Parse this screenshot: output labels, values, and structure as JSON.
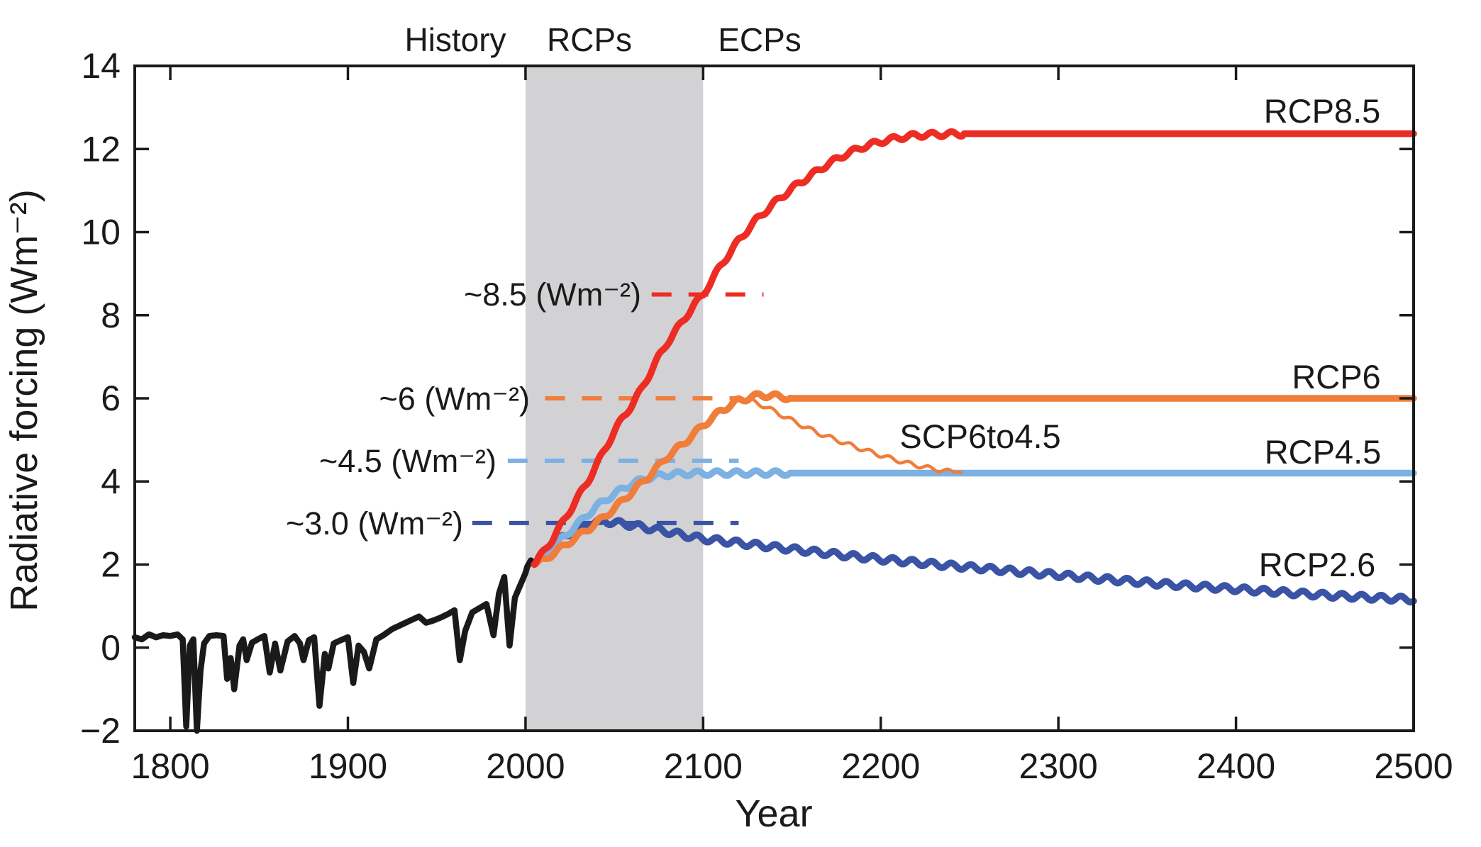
{
  "page": {
    "background": "#ffffff"
  },
  "chart_data": {
    "type": "line",
    "title": "",
    "xlabel": "Year",
    "ylabel": "Radiative forcing (Wm⁻²)",
    "xlim": [
      1780,
      2500
    ],
    "ylim": [
      -2,
      14
    ],
    "xticks": [
      1800,
      1900,
      2000,
      2100,
      2200,
      2300,
      2400,
      2500
    ],
    "yticks": [
      -2,
      0,
      2,
      4,
      6,
      8,
      10,
      12,
      14
    ],
    "grid": false,
    "legend_position": "inline-labels",
    "period_labels": {
      "history": "History",
      "rcps": "RCPs",
      "ecps": "ECPs"
    },
    "shaded_band": {
      "year_from": 2000,
      "year_to": 2100,
      "color": "#d2d2d5"
    },
    "dashed_lines": [
      {
        "label": "~8.5 (Wm⁻²)",
        "value": 8.5,
        "color": "#ed2d24",
        "year_from": 2071,
        "year_to": 2134
      },
      {
        "label": "~6 (Wm⁻²)",
        "value": 6.0,
        "color": "#f07d3a",
        "year_from": 2011,
        "year_to": 2120
      },
      {
        "label": "~4.5 (Wm⁻²)",
        "value": 4.5,
        "color": "#7cb1e2",
        "year_from": 1990,
        "year_to": 2120
      },
      {
        "label": "~3.0 (Wm⁻²)",
        "value": 3.0,
        "color": "#3a53a4",
        "year_from": 1970,
        "year_to": 2120
      }
    ],
    "series": [
      {
        "name": "History",
        "label": "History",
        "color": "#1a1a1a",
        "width": 8.5,
        "points": [
          [
            1780,
            0.25
          ],
          [
            1784,
            0.2
          ],
          [
            1788,
            0.32
          ],
          [
            1792,
            0.25
          ],
          [
            1796,
            0.3
          ],
          [
            1800,
            0.28
          ],
          [
            1804,
            0.32
          ],
          [
            1807,
            0.2
          ],
          [
            1809,
            -1.9
          ],
          [
            1811,
            0.05
          ],
          [
            1813,
            0.2
          ],
          [
            1815,
            -2.0
          ],
          [
            1817,
            -0.55
          ],
          [
            1819,
            0.1
          ],
          [
            1822,
            0.28
          ],
          [
            1826,
            0.3
          ],
          [
            1830,
            0.28
          ],
          [
            1832,
            -0.75
          ],
          [
            1834,
            -0.25
          ],
          [
            1836,
            -1.0
          ],
          [
            1839,
            0.05
          ],
          [
            1841,
            0.2
          ],
          [
            1843,
            -0.3
          ],
          [
            1846,
            0.12
          ],
          [
            1850,
            0.22
          ],
          [
            1853,
            0.28
          ],
          [
            1856,
            -0.6
          ],
          [
            1859,
            0.1
          ],
          [
            1862,
            -0.55
          ],
          [
            1866,
            0.15
          ],
          [
            1870,
            0.28
          ],
          [
            1873,
            0.1
          ],
          [
            1875,
            -0.3
          ],
          [
            1878,
            0.18
          ],
          [
            1881,
            0.25
          ],
          [
            1884,
            -1.4
          ],
          [
            1887,
            -0.15
          ],
          [
            1889,
            -0.5
          ],
          [
            1892,
            0.1
          ],
          [
            1896,
            0.18
          ],
          [
            1900,
            0.25
          ],
          [
            1903,
            -0.85
          ],
          [
            1906,
            0.05
          ],
          [
            1909,
            -0.1
          ],
          [
            1912,
            -0.5
          ],
          [
            1916,
            0.2
          ],
          [
            1920,
            0.3
          ],
          [
            1925,
            0.45
          ],
          [
            1930,
            0.55
          ],
          [
            1935,
            0.65
          ],
          [
            1940,
            0.75
          ],
          [
            1944,
            0.6
          ],
          [
            1948,
            0.65
          ],
          [
            1952,
            0.72
          ],
          [
            1956,
            0.8
          ],
          [
            1960,
            0.9
          ],
          [
            1963,
            -0.3
          ],
          [
            1966,
            0.4
          ],
          [
            1970,
            0.85
          ],
          [
            1974,
            0.95
          ],
          [
            1978,
            1.05
          ],
          [
            1982,
            0.3
          ],
          [
            1985,
            1.3
          ],
          [
            1988,
            1.7
          ],
          [
            1991,
            0.05
          ],
          [
            1994,
            1.2
          ],
          [
            1997,
            1.5
          ],
          [
            2000,
            1.8
          ],
          [
            2001,
            1.95
          ],
          [
            2003,
            2.1
          ],
          [
            2005,
            2.0
          ]
        ]
      },
      {
        "name": "RCP2.6",
        "label": "RCP2.6",
        "color": "#3a53a4",
        "width": 9.5,
        "wiggle": {
          "amp": 0.07,
          "period": 11,
          "from": 2006,
          "until": 2500
        },
        "points": [
          [
            2005,
            2.0
          ],
          [
            2010,
            2.25
          ],
          [
            2015,
            2.45
          ],
          [
            2020,
            2.62
          ],
          [
            2025,
            2.77
          ],
          [
            2030,
            2.88
          ],
          [
            2035,
            2.96
          ],
          [
            2040,
            3.02
          ],
          [
            2045,
            3.04
          ],
          [
            2050,
            3.01
          ],
          [
            2060,
            2.95
          ],
          [
            2070,
            2.87
          ],
          [
            2080,
            2.79
          ],
          [
            2090,
            2.7
          ],
          [
            2100,
            2.62
          ],
          [
            2120,
            2.52
          ],
          [
            2140,
            2.42
          ],
          [
            2160,
            2.32
          ],
          [
            2180,
            2.22
          ],
          [
            2200,
            2.13
          ],
          [
            2220,
            2.05
          ],
          [
            2240,
            1.97
          ],
          [
            2260,
            1.9
          ],
          [
            2280,
            1.82
          ],
          [
            2300,
            1.75
          ],
          [
            2320,
            1.67
          ],
          [
            2340,
            1.6
          ],
          [
            2360,
            1.53
          ],
          [
            2380,
            1.47
          ],
          [
            2400,
            1.41
          ],
          [
            2420,
            1.35
          ],
          [
            2440,
            1.29
          ],
          [
            2460,
            1.24
          ],
          [
            2480,
            1.2
          ],
          [
            2500,
            1.16
          ]
        ]
      },
      {
        "name": "RCP4.5",
        "label": "RCP4.5",
        "color": "#7cb1e2",
        "width": 9.5,
        "wiggle": {
          "amp": 0.06,
          "period": 11,
          "from": 2006,
          "until": 2148
        },
        "points": [
          [
            2005,
            2.0
          ],
          [
            2010,
            2.25
          ],
          [
            2020,
            2.6
          ],
          [
            2030,
            3.0
          ],
          [
            2040,
            3.4
          ],
          [
            2050,
            3.7
          ],
          [
            2060,
            3.95
          ],
          [
            2070,
            4.1
          ],
          [
            2080,
            4.17
          ],
          [
            2090,
            4.19
          ],
          [
            2100,
            4.2
          ],
          [
            2148,
            4.2
          ],
          [
            2500,
            4.2
          ]
        ]
      },
      {
        "name": "RCP6",
        "label": "RCP6",
        "color": "#f07d3a",
        "width": 9.5,
        "wiggle": {
          "amp": 0.06,
          "period": 11,
          "from": 2006,
          "until": 2148
        },
        "points": [
          [
            2005,
            2.0
          ],
          [
            2010,
            2.1
          ],
          [
            2020,
            2.4
          ],
          [
            2030,
            2.7
          ],
          [
            2040,
            3.0
          ],
          [
            2050,
            3.35
          ],
          [
            2060,
            3.75
          ],
          [
            2070,
            4.15
          ],
          [
            2080,
            4.6
          ],
          [
            2090,
            4.95
          ],
          [
            2100,
            5.35
          ],
          [
            2110,
            5.7
          ],
          [
            2120,
            5.95
          ],
          [
            2132,
            6.08
          ],
          [
            2142,
            6.05
          ],
          [
            2150,
            6.0
          ],
          [
            2500,
            6.0
          ]
        ]
      },
      {
        "name": "SCP6to4.5",
        "label": "SCP6to4.5",
        "color": "#f07d3a",
        "width": 4.5,
        "wiggle": {
          "amp": 0.05,
          "period": 11,
          "from": 2125,
          "until": 2240
        },
        "points": [
          [
            2125,
            5.98
          ],
          [
            2135,
            5.8
          ],
          [
            2145,
            5.58
          ],
          [
            2155,
            5.36
          ],
          [
            2165,
            5.16
          ],
          [
            2175,
            5.0
          ],
          [
            2185,
            4.84
          ],
          [
            2195,
            4.7
          ],
          [
            2205,
            4.56
          ],
          [
            2215,
            4.44
          ],
          [
            2225,
            4.34
          ],
          [
            2235,
            4.26
          ],
          [
            2245,
            4.21
          ]
        ]
      },
      {
        "name": "RCP8.5",
        "label": "RCP8.5",
        "color": "#ed2d24",
        "width": 9.5,
        "wiggle": {
          "amp": 0.06,
          "period": 11,
          "from": 2006,
          "until": 2246
        },
        "points": [
          [
            2005,
            2.0
          ],
          [
            2010,
            2.3
          ],
          [
            2015,
            2.6
          ],
          [
            2020,
            2.95
          ],
          [
            2025,
            3.3
          ],
          [
            2030,
            3.65
          ],
          [
            2035,
            4.0
          ],
          [
            2040,
            4.4
          ],
          [
            2045,
            4.8
          ],
          [
            2050,
            5.2
          ],
          [
            2055,
            5.55
          ],
          [
            2060,
            5.85
          ],
          [
            2065,
            6.2
          ],
          [
            2070,
            6.6
          ],
          [
            2075,
            7.0
          ],
          [
            2080,
            7.35
          ],
          [
            2085,
            7.65
          ],
          [
            2090,
            7.95
          ],
          [
            2095,
            8.25
          ],
          [
            2100,
            8.5
          ],
          [
            2110,
            9.2
          ],
          [
            2120,
            9.8
          ],
          [
            2130,
            10.3
          ],
          [
            2140,
            10.7
          ],
          [
            2150,
            11.05
          ],
          [
            2160,
            11.35
          ],
          [
            2170,
            11.63
          ],
          [
            2180,
            11.87
          ],
          [
            2190,
            12.05
          ],
          [
            2200,
            12.18
          ],
          [
            2210,
            12.27
          ],
          [
            2220,
            12.33
          ],
          [
            2230,
            12.35
          ],
          [
            2240,
            12.36
          ],
          [
            2248,
            12.37
          ],
          [
            2500,
            12.37
          ]
        ]
      }
    ]
  }
}
